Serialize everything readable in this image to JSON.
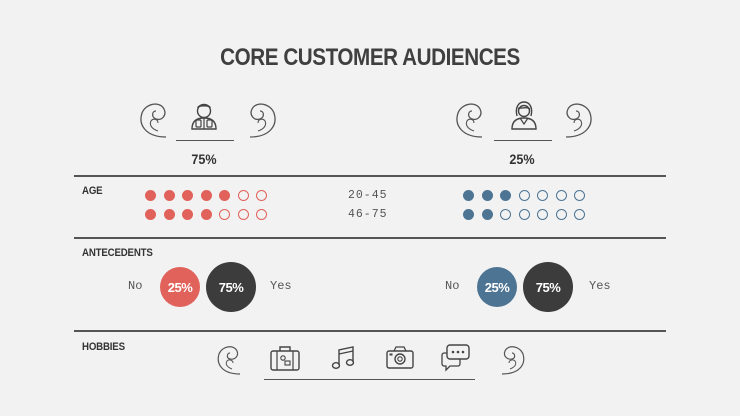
{
  "title": "CORE CUSTOMER AUDIENCES",
  "colors": {
    "red": "#e0625a",
    "blue": "#4d7493",
    "dark": "#3c3c3c"
  },
  "left_group": {
    "percentage": "75%",
    "icon": "man-avatar-icon",
    "age_rows": [
      {
        "filled": 5,
        "total": 7
      },
      {
        "filled": 4,
        "total": 7
      }
    ],
    "antecedents": {
      "no_label": "No",
      "no_value": "25%",
      "yes_value": "75%",
      "yes_label": "Yes"
    }
  },
  "right_group": {
    "percentage": "25%",
    "icon": "woman-avatar-icon",
    "age_rows": [
      {
        "filled": 3,
        "total": 7
      },
      {
        "filled": 2,
        "total": 7
      }
    ],
    "antecedents": {
      "no_label": "No",
      "no_value": "25%",
      "yes_value": "75%",
      "yes_label": "Yes"
    }
  },
  "age": {
    "label": "AGE",
    "ranges": [
      "20-45",
      "46-75"
    ]
  },
  "antecedents_label": "ANTECEDENTS",
  "hobbies": {
    "label": "HOBBIES",
    "icons": [
      "suitcase-icon",
      "music-note-icon",
      "camera-icon",
      "chat-bubble-icon"
    ]
  }
}
